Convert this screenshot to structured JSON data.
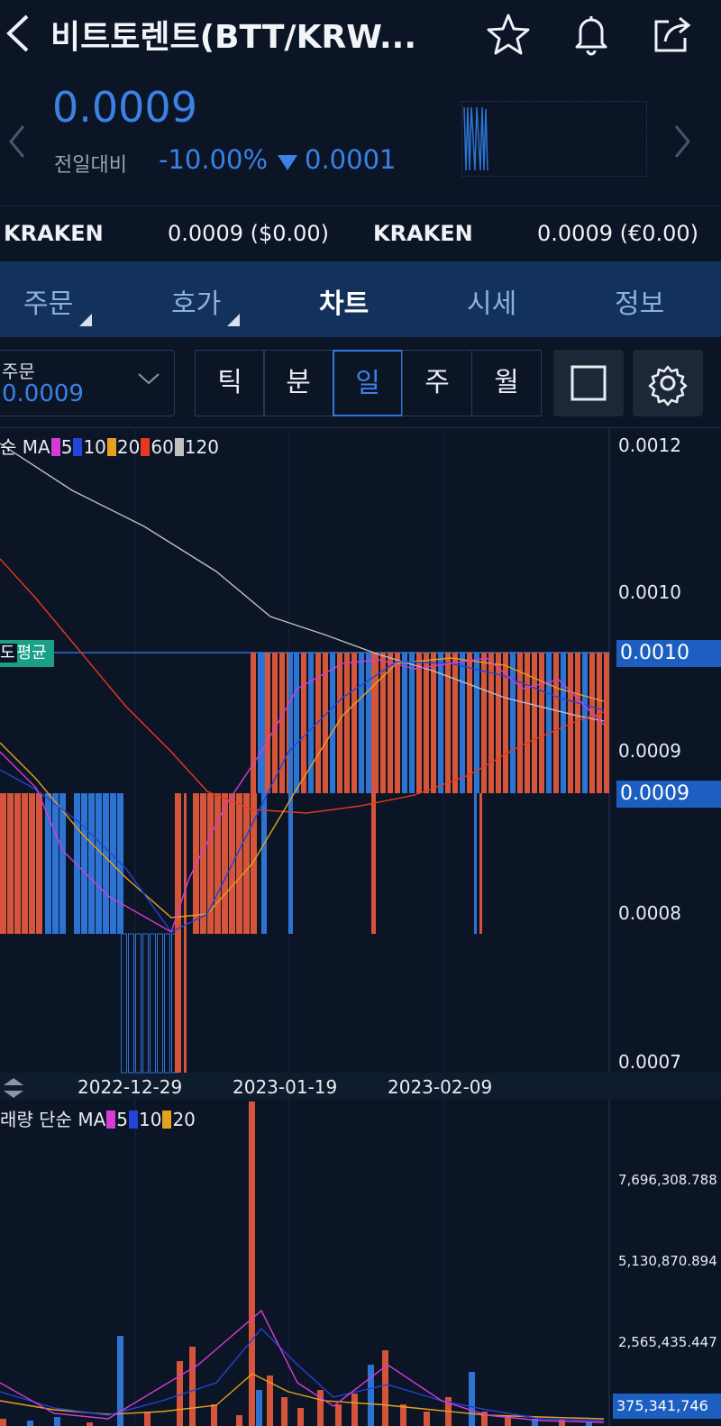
{
  "header": {
    "title": "비트토렌트(BTT/KRW...",
    "icons": [
      "back-icon",
      "star-icon",
      "bell-icon",
      "share-icon"
    ]
  },
  "price": {
    "current": "0.0009",
    "change_label": "전일대비",
    "change_pct": "-10.00%",
    "change_abs": "0.0001",
    "down_color": "#3b82e6"
  },
  "exchanges": [
    {
      "name": "KRAKEN",
      "value": "0.0009 ($0.00)"
    },
    {
      "name": "KRAKEN",
      "value": "0.0009 (€0.00)"
    }
  ],
  "tabs": [
    {
      "label": "주문",
      "active": false
    },
    {
      "label": "호가",
      "active": false
    },
    {
      "label": "차트",
      "active": true
    },
    {
      "label": "시세",
      "active": false
    },
    {
      "label": "정보",
      "active": false
    }
  ],
  "toolbar": {
    "order_label": "주문",
    "order_value": "0.0009",
    "periods": [
      {
        "label": "틱",
        "active": false
      },
      {
        "label": "분",
        "active": false
      },
      {
        "label": "일",
        "active": true
      },
      {
        "label": "주",
        "active": false
      },
      {
        "label": "월",
        "active": false
      }
    ]
  },
  "colors": {
    "up": "#d4553a",
    "down": "#2d73d2",
    "ma5": "#d63bd6",
    "ma10": "#2244d8",
    "ma20": "#e5a01e",
    "ma60": "#e53a1f",
    "ma120": "#bfbfbf",
    "accent": "#1d5fc0"
  },
  "price_chart": {
    "legend_prefix": "순 MA",
    "ma_periods": [
      "5",
      "10",
      "20",
      "60",
      "120"
    ],
    "y_ticks": [
      "0.0012",
      "0.0010",
      "0.0009",
      "0.0008",
      "0.0007"
    ],
    "current_badge": "0.0010",
    "last_badge": "0.0009",
    "avg_badge_prefix": "도",
    "avg_badge": "평균",
    "x_ticks": [
      "2022-12-29",
      "2023-01-19",
      "2023-02-09"
    ]
  },
  "volume_chart": {
    "legend_prefix": "래량 단순 MA",
    "ma_periods": [
      "5",
      "10",
      "20"
    ],
    "y_ticks": [
      "7,696,308.788",
      "5,130,870.894",
      "2,565,435.447"
    ],
    "current_badge": "375,341,746"
  },
  "chart_data": {
    "type": "candlestick",
    "price_levels": [
      0.0008,
      0.0009,
      0.001
    ],
    "ylim": [
      0.0007,
      0.0012
    ],
    "x_ticks": [
      "2022-12-29",
      "2023-01-19",
      "2023-02-09"
    ],
    "volume_ylim": [
      0,
      9000000000
    ],
    "volume_ticks": [
      2565435447,
      5130870894,
      7696308788
    ],
    "ma_lines": [
      "5",
      "10",
      "20",
      "60",
      "120"
    ]
  }
}
